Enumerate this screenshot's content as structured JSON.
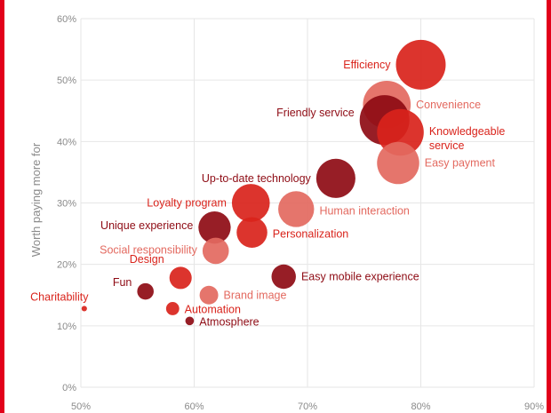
{
  "chart_data": {
    "type": "scatter",
    "title": "",
    "xlabel": "",
    "ylabel": "Worth paying more for",
    "xlim": [
      50,
      90
    ],
    "ylim": [
      0,
      60
    ],
    "x_ticks": [
      "50%",
      "60%",
      "70%",
      "80%",
      "90%"
    ],
    "y_ticks": [
      "0%",
      "10%",
      "20%",
      "30%",
      "40%",
      "50%",
      "60%"
    ],
    "grid": true,
    "colors": {
      "dark": "#8e0b14",
      "mid": "#d9231b",
      "light": "#e3695f"
    },
    "points": [
      {
        "label": "Efficiency",
        "x": 80,
        "y": 52.5,
        "size": 100,
        "tone": "mid"
      },
      {
        "label": "Convenience",
        "x": 77,
        "y": 46,
        "size": 92,
        "tone": "light"
      },
      {
        "label": "Friendly service",
        "x": 76.8,
        "y": 43.5,
        "size": 100,
        "tone": "dark"
      },
      {
        "label": "Knowledgeable service",
        "x": 78.2,
        "y": 41.5,
        "size": 88,
        "tone": "mid"
      },
      {
        "label": "Easy payment",
        "x": 78,
        "y": 36.5,
        "size": 72,
        "tone": "light"
      },
      {
        "label": "Up-to-date technology",
        "x": 72.5,
        "y": 34,
        "size": 62,
        "tone": "dark"
      },
      {
        "label": "Loyalty program",
        "x": 65,
        "y": 30,
        "size": 58,
        "tone": "mid"
      },
      {
        "label": "Human interaction",
        "x": 69,
        "y": 29,
        "size": 52,
        "tone": "light"
      },
      {
        "label": "Unique experience",
        "x": 61.8,
        "y": 26,
        "size": 42,
        "tone": "dark"
      },
      {
        "label": "Personalization",
        "x": 65.1,
        "y": 25.2,
        "size": 38,
        "tone": "mid"
      },
      {
        "label": "Social responsibility",
        "x": 61.9,
        "y": 22.2,
        "size": 28,
        "tone": "light"
      },
      {
        "label": "Easy mobile experience",
        "x": 67.9,
        "y": 18,
        "size": 24,
        "tone": "dark"
      },
      {
        "label": "Design",
        "x": 58.8,
        "y": 17.8,
        "size": 20,
        "tone": "mid"
      },
      {
        "label": "Fun",
        "x": 55.7,
        "y": 15.6,
        "size": 11,
        "tone": "dark"
      },
      {
        "label": "Brand image",
        "x": 61.3,
        "y": 15,
        "size": 14,
        "tone": "light"
      },
      {
        "label": "Charitability",
        "x": 50.3,
        "y": 12.8,
        "size": 1.2,
        "tone": "mid"
      },
      {
        "label": "Automation",
        "x": 58.1,
        "y": 12.8,
        "size": 7,
        "tone": "mid"
      },
      {
        "label": "Atmosphere",
        "x": 59.6,
        "y": 10.8,
        "size": 3,
        "tone": "dark"
      }
    ]
  }
}
